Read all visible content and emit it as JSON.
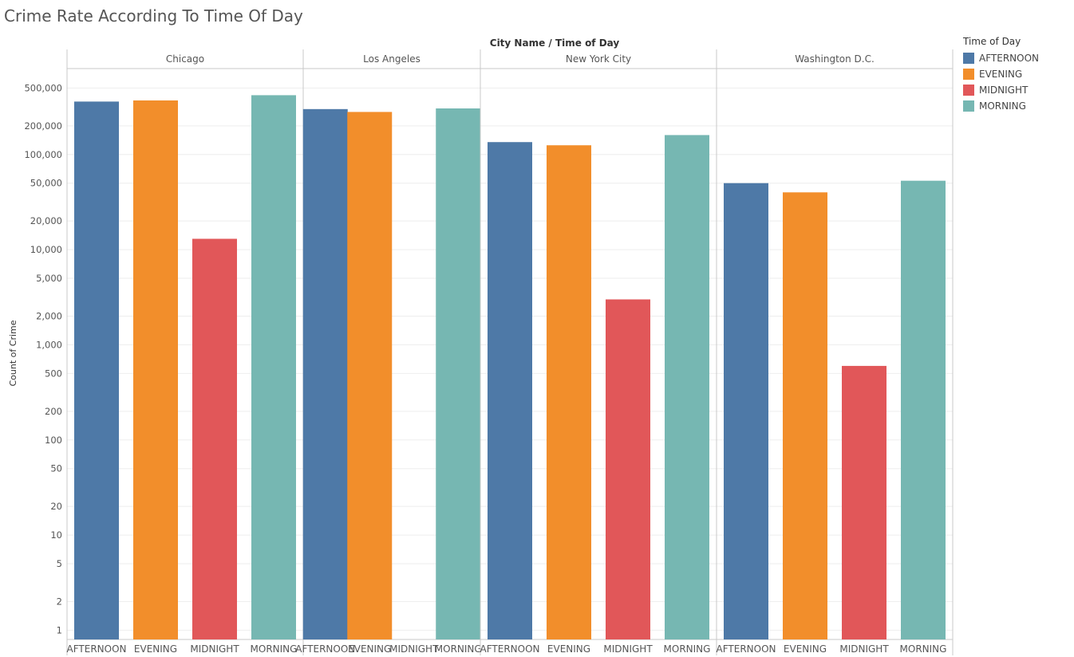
{
  "title": "Crime Rate According To Time Of Day",
  "colors": {
    "AFTERNOON": "#4e79a7",
    "EVENING": "#f28e2b",
    "MIDNIGHT": "#e15759",
    "MORNING": "#76b7b2",
    "axis": "#c8c8c8",
    "grid": "#eeeeee",
    "text": "#555555"
  },
  "legend": {
    "title": "Time of Day",
    "items": [
      "AFTERNOON",
      "EVENING",
      "MIDNIGHT",
      "MORNING"
    ]
  },
  "chart_data": {
    "type": "bar",
    "scale": "log",
    "header_label": "City Name  /  Time of Day",
    "ylabel": "Count of Crime",
    "ylim": [
      0.8,
      800000
    ],
    "yticks": [
      1,
      2,
      5,
      10,
      20,
      50,
      100,
      200,
      500,
      1000,
      2000,
      5000,
      10000,
      20000,
      50000,
      100000,
      200000,
      500000
    ],
    "ytick_labels": [
      "1",
      "2",
      "5",
      "10",
      "20",
      "50",
      "100",
      "200",
      "500",
      "1,000",
      "2,000",
      "5,000",
      "10,000",
      "20,000",
      "50,000",
      "100,000",
      "200,000",
      "500,000"
    ],
    "categories": [
      "AFTERNOON",
      "EVENING",
      "MIDNIGHT",
      "MORNING"
    ],
    "groups": [
      {
        "name": "Chicago",
        "values": [
          360000,
          370000,
          13000,
          420000
        ]
      },
      {
        "name": "Los Angeles",
        "values": [
          300000,
          280000,
          null,
          305000
        ]
      },
      {
        "name": "New York City",
        "values": [
          135000,
          125000,
          3000,
          160000
        ]
      },
      {
        "name": "Washington D.C.",
        "values": [
          50000,
          40000,
          600,
          53000
        ]
      }
    ],
    "legend_position": "top-right"
  }
}
